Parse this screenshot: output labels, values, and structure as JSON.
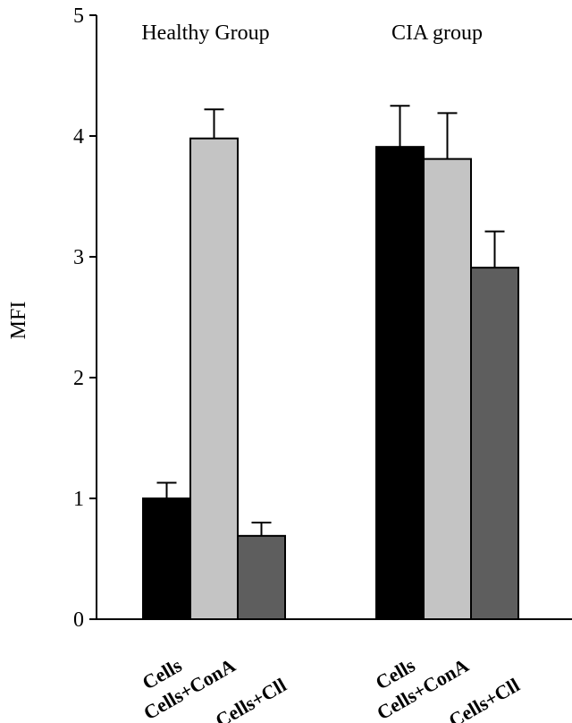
{
  "chart_data": {
    "type": "bar",
    "title": "",
    "xlabel": "",
    "ylabel": "MFI",
    "ylim": [
      0,
      5
    ],
    "yticks": [
      0,
      1,
      2,
      3,
      4,
      5
    ],
    "grid": false,
    "legend": "none",
    "colors": [
      "#000000",
      "#c4c4c4",
      "#5e5e5e"
    ],
    "groups": [
      {
        "name": "Healthy Group",
        "categories": [
          "Cells",
          "Cells+ConA",
          "Cells+Cll"
        ],
        "values": [
          1.0,
          3.98,
          0.69
        ],
        "errors": [
          0.13,
          0.24,
          0.11
        ]
      },
      {
        "name": "CIA group",
        "categories": [
          "Cells",
          "Cells+ConA",
          "Cells+Cll"
        ],
        "values": [
          3.91,
          3.81,
          2.91
        ],
        "errors": [
          0.34,
          0.38,
          0.3
        ]
      }
    ]
  }
}
